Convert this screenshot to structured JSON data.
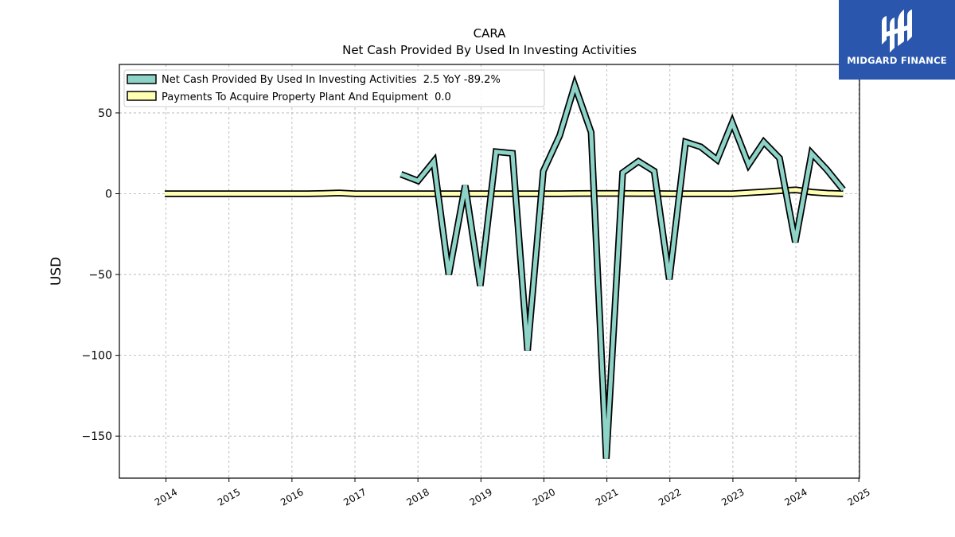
{
  "chart_data": {
    "type": "line",
    "title": "CARA",
    "subtitle": "Net Cash Provided By Used In Investing Activities",
    "ylabel": "USD",
    "xlabel": "",
    "ylim": [
      -176,
      80
    ],
    "xlim": [
      2013.26,
      2025.01
    ],
    "yticks": [
      50,
      0,
      -50,
      -100,
      -150
    ],
    "ytick_labels": [
      "50",
      "0",
      "−50",
      "−100",
      "−150"
    ],
    "xticks": [
      2014,
      2015,
      2016,
      2017,
      2018,
      2019,
      2020,
      2021,
      2022,
      2023,
      2024,
      2025
    ],
    "xtick_labels": [
      "2014",
      "2015",
      "2016",
      "2017",
      "2018",
      "2019",
      "2020",
      "2021",
      "2022",
      "2023",
      "2024",
      "2025"
    ],
    "grid": true,
    "legend_position": "top-left",
    "series": [
      {
        "name": "Net Cash Provided By Used In Investing Activities  2.5 YoY -89.2%",
        "color": "#8dd3c7",
        "x": [
          2017.73,
          2018.0,
          2018.25,
          2018.49,
          2018.75,
          2018.99,
          2019.24,
          2019.5,
          2019.74,
          2019.99,
          2020.25,
          2020.49,
          2020.75,
          2020.99,
          2021.25,
          2021.5,
          2021.75,
          2021.99,
          2022.25,
          2022.49,
          2022.75,
          2022.99,
          2023.25,
          2023.49,
          2023.74,
          2023.99,
          2024.25,
          2024.49,
          2024.75
        ],
        "y": [
          12,
          8,
          20,
          -50,
          5,
          -57,
          26,
          25,
          -97,
          14,
          36,
          67,
          38,
          -164,
          13,
          20,
          14,
          -53,
          32,
          29,
          21,
          44,
          18,
          32,
          22,
          -30,
          25,
          15,
          2.5
        ]
      },
      {
        "name": "Payments To Acquire Property Plant And Equipment  0.0",
        "color": "#ffffb3",
        "x": [
          2013.98,
          2014.25,
          2014.5,
          2014.75,
          2015.0,
          2015.25,
          2015.5,
          2015.75,
          2016.0,
          2016.25,
          2016.5,
          2016.75,
          2017.0,
          2017.25,
          2017.5,
          2017.75,
          2018.0,
          2018.25,
          2018.5,
          2018.75,
          2019.0,
          2019.25,
          2019.5,
          2019.75,
          2020.0,
          2020.25,
          2020.5,
          2020.75,
          2021.0,
          2021.25,
          2021.5,
          2021.75,
          2022.0,
          2022.25,
          2022.5,
          2022.75,
          2023.0,
          2023.25,
          2023.5,
          2023.75,
          2024.0,
          2024.25,
          2024.5,
          2024.75
        ],
        "y": [
          0,
          0,
          0,
          0,
          0,
          0,
          0,
          0,
          0,
          0,
          0.2,
          0.5,
          0,
          0,
          0,
          0,
          0,
          0,
          0,
          0,
          0,
          0,
          0,
          0,
          0,
          0,
          0.1,
          0.2,
          0.2,
          0.2,
          0.1,
          0.1,
          0,
          0,
          0,
          0,
          0,
          0.6,
          1.2,
          1.8,
          2.4,
          1.0,
          0.3,
          0.0
        ]
      }
    ]
  },
  "brand": {
    "name": "MIDGARD FINANCE",
    "logo_icon": "midgard-logo-icon",
    "background": "#2a57ad"
  }
}
